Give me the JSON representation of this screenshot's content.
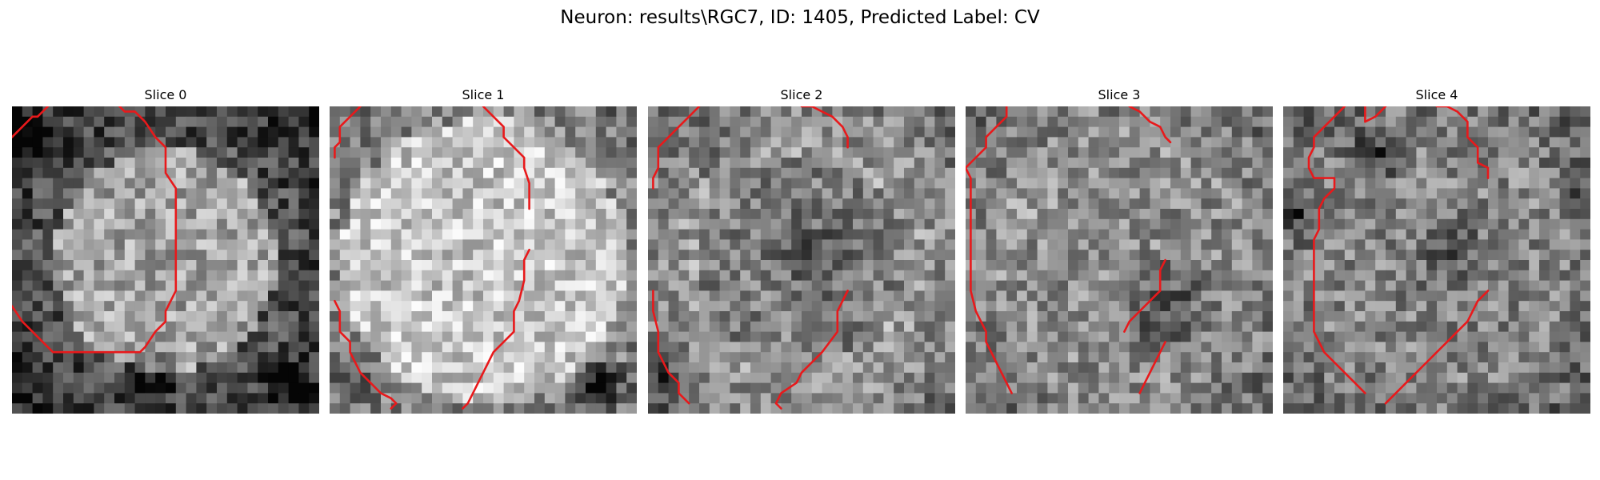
{
  "figure": {
    "title": "Neuron: results\\RGC7, ID: 1405, Predicted Label: CV"
  },
  "panels": [
    {
      "title": "Slice 0"
    },
    {
      "title": "Slice 1"
    },
    {
      "title": "Slice 2"
    },
    {
      "title": "Slice 3"
    },
    {
      "title": "Slice 4"
    }
  ],
  "colors": {
    "background": "#ffffff",
    "contour": "#e8191b",
    "image_colormap": "gray"
  }
}
